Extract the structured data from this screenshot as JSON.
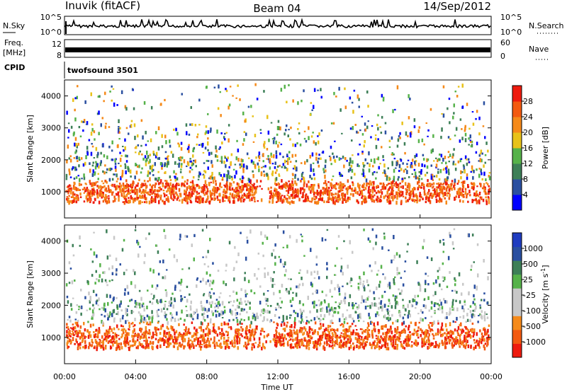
{
  "header": {
    "station": "Inuvik (fitACF)",
    "beam": "Beam 04",
    "date": "14/Sep/2012"
  },
  "top_panel": {
    "left_label": "N.Sky",
    "left_ticks": [
      "10^5",
      "10^0"
    ],
    "right_label": "N.Search",
    "right_ticks": [
      "10^5",
      "10^0"
    ]
  },
  "freq_panel": {
    "label_line1": "Freq.",
    "label_line2": "[MHz]",
    "left_ticks": [
      "12",
      "8"
    ],
    "right_label": "Nave",
    "right_ticks": [
      "60",
      "0"
    ]
  },
  "cpid_panel": {
    "label": "CPID",
    "program": "twofsound 3501"
  },
  "colors": {
    "power": [
      "#0000ff",
      "#2a4fa0",
      "#3d7f57",
      "#56b24a",
      "#e8c21a",
      "#f58a1a",
      "#f35a10",
      "#ee1b0e"
    ],
    "velocity": [
      "#ee1b0e",
      "#f35a10",
      "#f58a1a",
      "#c8c8c8",
      "#c8c8c8",
      "#56b24a",
      "#3d7f57",
      "#2a4fa0",
      "#1f3cc0"
    ]
  },
  "chart_data": [
    {
      "type": "heatmap",
      "name": "power",
      "ylabel": "Slant Range [km]",
      "yticks": [
        "1000",
        "2000",
        "3000",
        "4000"
      ],
      "ylim": [
        180,
        4500
      ],
      "colorbar": {
        "label": "Power [dB]",
        "ticks": [
          "4",
          "8",
          "12",
          "16",
          "20",
          "24",
          "28"
        ],
        "range": [
          0,
          32
        ]
      }
    },
    {
      "type": "heatmap",
      "name": "velocity",
      "ylabel": "Slant Range [km]",
      "yticks": [
        "1000",
        "2000",
        "3000",
        "4000"
      ],
      "ylim": [
        180,
        4500
      ],
      "xlabel": "Time UT",
      "xticks": [
        "00:00",
        "04:00",
        "08:00",
        "12:00",
        "16:00",
        "20:00",
        "00:00"
      ],
      "colorbar": {
        "label": "Velocity [m s-1]",
        "ticks": [
          "1000",
          "500",
          "25",
          "-25",
          "-100",
          "-500",
          "-1000"
        ]
      }
    }
  ]
}
